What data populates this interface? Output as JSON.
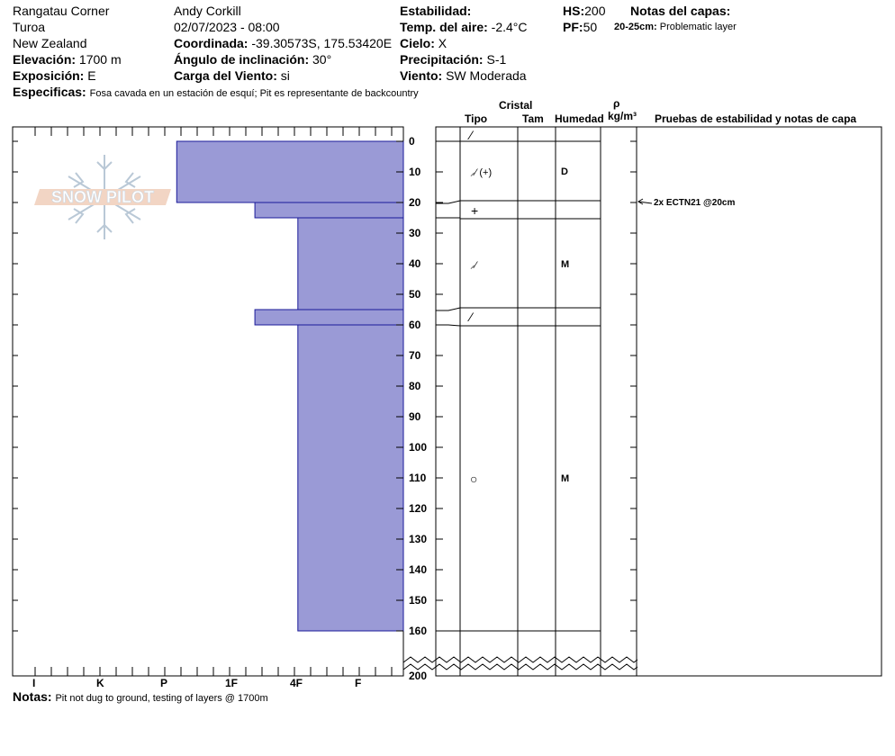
{
  "header": {
    "location": "Rangatau Corner",
    "region": "Turoa",
    "country": "New Zealand",
    "elevation_label": "Elevación:",
    "elevation_value": "1700 m",
    "exposure_label": "Exposición:",
    "exposure_value": "E",
    "observer": "Andy Corkill",
    "datetime": "02/07/2023 - 08:00",
    "coord_label": "Coordinada:",
    "coord_value": "-39.30573S, 175.53420E",
    "slope_label": "Ángulo de inclinación:",
    "slope_value": "30°",
    "wind_load_label": "Carga del Viento:",
    "wind_load_value": "si",
    "stability_label": "Estabilidad:",
    "air_temp_label": "Temp. del aire:",
    "air_temp_value": "-2.4°C",
    "sky_label": "Cielo:",
    "sky_value": "X",
    "precip_label": "Precipitación:",
    "precip_value": "S-1",
    "wind_label": "Viento:",
    "wind_value": "SW Moderada",
    "hs_label": "HS:",
    "hs_value": "200",
    "pf_label": "PF:",
    "pf_value": "50",
    "layer_notes_label": "Notas del capas:",
    "layer_note_range": "20-25cm:",
    "layer_note_text": "Problematic layer",
    "specifics_label": "Especificas:",
    "specifics_text": "Fosa cavada en un estación de esquí; Pit es representante de backcountry"
  },
  "columns": {
    "crystal": "Cristal",
    "type": "Tipo",
    "size": "Tam",
    "moisture": "Humedad",
    "rho": "ρ",
    "density_unit": "kg/m³",
    "tests": "Pruebas de estabilidad y notas de capa"
  },
  "depth_ticks": [
    "0",
    "10",
    "20",
    "30",
    "40",
    "50",
    "60",
    "70",
    "80",
    "90",
    "100",
    "110",
    "120",
    "130",
    "140",
    "150",
    "160",
    "200"
  ],
  "hardness_ticks": [
    "I",
    "K",
    "P",
    "1F",
    "4F",
    "F"
  ],
  "hardness_profile": [
    {
      "top_cm": 0,
      "bottom_cm": 20,
      "hardness": "F/4F",
      "level": 0.42
    },
    {
      "top_cm": 20,
      "bottom_cm": 25,
      "hardness": "1F-",
      "level": 0.62
    },
    {
      "top_cm": 25,
      "bottom_cm": 55,
      "hardness": "P",
      "level": 0.73
    },
    {
      "top_cm": 55,
      "bottom_cm": 60,
      "hardness": "1F-",
      "level": 0.62
    },
    {
      "top_cm": 60,
      "bottom_cm": 160,
      "hardness": "P",
      "level": 0.73
    }
  ],
  "layers": [
    {
      "grain": "⁄",
      "moisture": ""
    },
    {
      "grain": "⸝⁄ (+)",
      "moisture": "D"
    },
    {
      "grain": "+",
      "moisture": ""
    },
    {
      "grain": "⸝⁄",
      "moisture": "M"
    },
    {
      "grain": "⁄",
      "moisture": ""
    },
    {
      "grain": "○",
      "moisture": "M"
    }
  ],
  "test_result": "2x ECTN21 @20cm",
  "notes_label": "Notas:",
  "notes_text": "Pit not dug to ground, testing of layers @ 1700m",
  "logo_text": "SNOW PILOT"
}
